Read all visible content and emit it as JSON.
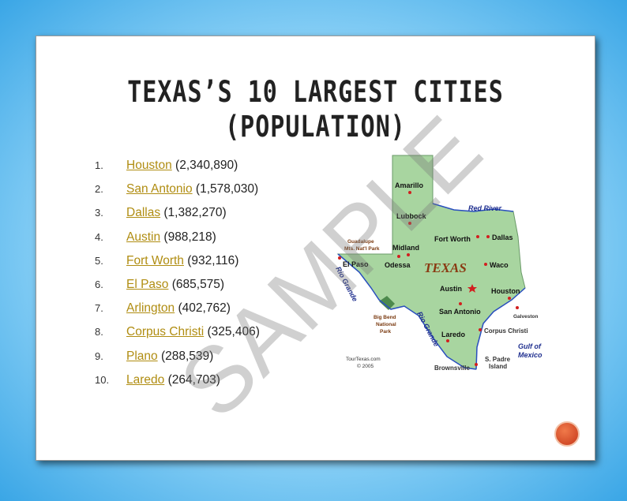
{
  "title": "Texas’s 10 Largest Cities (Population)",
  "list": [
    {
      "number": "1.",
      "city": "Houston",
      "population": "(2,340,890)"
    },
    {
      "number": "2.",
      "city": "San Antonio",
      "population": "(1,578,030)"
    },
    {
      "number": "3.",
      "city": "Dallas",
      "population": "(1,382,270)"
    },
    {
      "number": "4.",
      "city": "Austin",
      "population": "(988,218)"
    },
    {
      "number": "5.",
      "city": "Fort Worth",
      "population": "(932,116)"
    },
    {
      "number": "6.",
      "city": "El Paso",
      "population": "(685,575)"
    },
    {
      "number": "7.",
      "city": "Arlington",
      "population": "(402,762)"
    },
    {
      "number": "8.",
      "city": "Corpus Christi",
      "population": "(325,406)"
    },
    {
      "number": "9.",
      "city": "Plano",
      "population": "(288,539)"
    },
    {
      "number": "10.",
      "city": "Laredo",
      "population": "(264,703)"
    }
  ],
  "map": {
    "state": "TEXAS",
    "cities": [
      "Amarillo",
      "Lubbock",
      "Fort Worth",
      "Dallas",
      "Midland",
      "Odessa",
      "El Paso",
      "Waco",
      "Austin",
      "Houston",
      "San Antonio",
      "Galveston",
      "Laredo",
      "Corpus Christi",
      "Brownsville"
    ],
    "red_river": "Red River",
    "rio_grande": "Rio Grande",
    "gulf": [
      "Gulf of",
      "Mexico"
    ],
    "guadalupe": [
      "Guadalupe",
      "Mts. Nat'l Park"
    ],
    "big_bend": [
      "Big Bend",
      "National",
      "Park"
    ],
    "padre": [
      "S. Padre",
      "Island"
    ],
    "credit": [
      "TourTexas.com",
      "© 2005"
    ]
  },
  "watermark": "SAMPLE"
}
